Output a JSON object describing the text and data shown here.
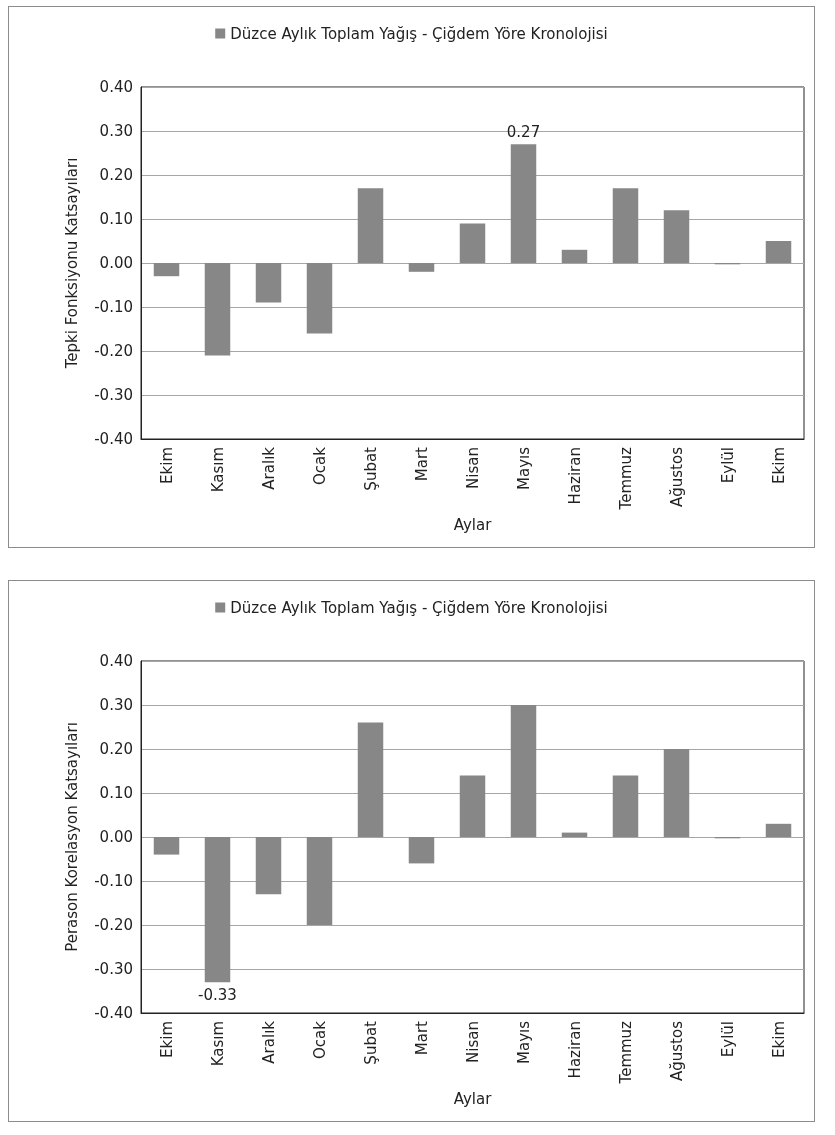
{
  "chart_data": [
    {
      "type": "bar",
      "ylabel": "Tepki Fonksiyonu Katsayıları",
      "xlabel": "Aylar",
      "categories": [
        "Ekim",
        "Kasım",
        "Aralık",
        "Ocak",
        "Şubat",
        "Mart",
        "Nisan",
        "Mayıs",
        "Haziran",
        "Temmuz",
        "Ağustos",
        "Eylül",
        "Ekim"
      ],
      "series": [
        {
          "name": "Düzce Aylık Toplam Yağış - Çiğdem Yöre Kronolojisi",
          "color": "#878787",
          "values": [
            -0.03,
            -0.21,
            -0.09,
            -0.16,
            0.17,
            -0.02,
            0.09,
            0.27,
            0.03,
            0.17,
            0.12,
            -0.003,
            0.05
          ],
          "value_labels": [
            null,
            null,
            null,
            null,
            null,
            null,
            null,
            "0.27",
            null,
            null,
            null,
            null,
            null
          ]
        }
      ],
      "ylim": [
        -0.4,
        0.4
      ],
      "yticks": [
        {
          "value": -0.4,
          "label": "-0.40"
        },
        {
          "value": -0.3,
          "label": "-0.30"
        },
        {
          "value": -0.2,
          "label": "-0.20"
        },
        {
          "value": -0.1,
          "label": "-0.10"
        },
        {
          "value": 0,
          "label": "0.00"
        },
        {
          "value": 0.1,
          "label": "0.10"
        },
        {
          "value": 0.2,
          "label": "0.20"
        },
        {
          "value": 0.3,
          "label": "0.30"
        },
        {
          "value": 0.4,
          "label": "0.40"
        }
      ],
      "grid": "y",
      "legend": "top"
    },
    {
      "type": "bar",
      "ylabel": "Perason Korelasyon Katsayıları",
      "xlabel": "Aylar",
      "categories": [
        "Ekim",
        "Kasım",
        "Aralık",
        "Ocak",
        "Şubat",
        "Mart",
        "Nisan",
        "Mayıs",
        "Haziran",
        "Temmuz",
        "Ağustos",
        "Eylül",
        "Ekim"
      ],
      "series": [
        {
          "name": "Düzce Aylık Toplam Yağış - Çiğdem Yöre Kronolojisi",
          "color": "#878787",
          "values": [
            -0.04,
            -0.33,
            -0.13,
            -0.2,
            0.26,
            -0.06,
            0.14,
            0.3,
            0.01,
            0.14,
            0.2,
            -0.003,
            0.03
          ],
          "value_labels": [
            null,
            "-0.33",
            null,
            null,
            null,
            null,
            null,
            null,
            null,
            null,
            null,
            null,
            null
          ]
        }
      ],
      "ylim": [
        -0.4,
        0.4
      ],
      "yticks": [
        {
          "value": -0.4,
          "label": "-0.40"
        },
        {
          "value": -0.3,
          "label": "-0.30"
        },
        {
          "value": -0.2,
          "label": "-0.20"
        },
        {
          "value": -0.1,
          "label": "-0.10"
        },
        {
          "value": 0,
          "label": "0.00"
        },
        {
          "value": 0.1,
          "label": "0.10"
        },
        {
          "value": 0.2,
          "label": "0.20"
        },
        {
          "value": 0.3,
          "label": "0.30"
        },
        {
          "value": 0.4,
          "label": "0.40"
        }
      ],
      "grid": "y",
      "legend": "top"
    }
  ]
}
